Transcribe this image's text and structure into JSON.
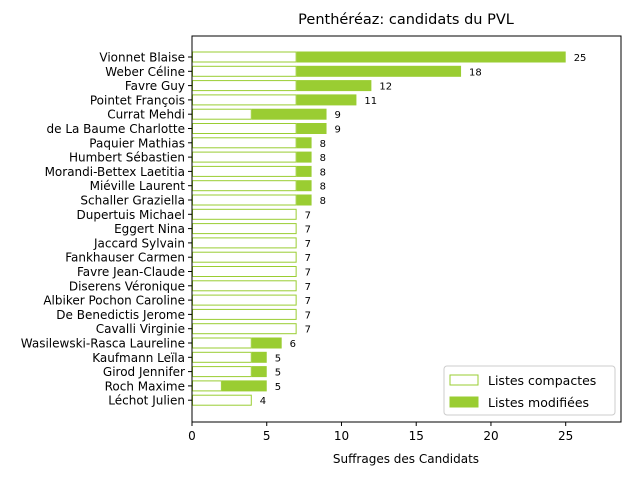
{
  "chart_data": {
    "type": "bar",
    "orientation": "horizontal",
    "stacked": true,
    "title": "Penthéréaz: candidats du PVL",
    "xlabel": "Suffrages des Candidats",
    "ylabel": "",
    "xlim": [
      0,
      28.7
    ],
    "xticks": [
      "0",
      "5",
      "10",
      "15",
      "20",
      "25"
    ],
    "grid": false,
    "legend_position": "lower-right",
    "colors": {
      "accent": "#9ACD32",
      "edge": "#9ACD32",
      "compact_fill": "#FFFFFF"
    },
    "categories": [
      "Vionnet Blaise",
      "Weber Céline",
      "Favre Guy",
      "Pointet François",
      "Currat Mehdi",
      "de La Baume Charlotte",
      "Paquier Mathias",
      "Humbert Sébastien",
      "Morandi-Bettex Laetitia",
      "Miéville Laurent",
      "Schaller Graziella",
      "Dupertuis Michael",
      "Eggert Nina",
      "Jaccard Sylvain",
      "Fankhauser Carmen",
      "Favre Jean-Claude",
      "Diserens Véronique",
      "Albiker Pochon Caroline",
      "De Benedictis Jerome",
      "Cavalli Virginie",
      "Wasilewski-Rasca Laureline",
      "Kaufmann Leïla",
      "Girod Jennifer",
      "Roch Maxime",
      "Léchot Julien"
    ],
    "series": [
      {
        "name": "Listes compactes",
        "values": [
          7,
          7,
          7,
          7,
          4,
          7,
          7,
          7,
          7,
          7,
          7,
          7,
          7,
          7,
          7,
          7,
          7,
          7,
          7,
          7,
          4,
          4,
          4,
          2,
          4
        ]
      },
      {
        "name": "Listes modifiées",
        "values": [
          18,
          11,
          5,
          4,
          5,
          2,
          1,
          1,
          1,
          1,
          1,
          0,
          0,
          0,
          0,
          0,
          0,
          0,
          0,
          0,
          2,
          1,
          1,
          3,
          0
        ]
      }
    ],
    "totals": [
      "25",
      "18",
      "12",
      "11",
      "9",
      "9",
      "8",
      "8",
      "8",
      "8",
      "8",
      "7",
      "7",
      "7",
      "7",
      "7",
      "7",
      "7",
      "7",
      "7",
      "6",
      "5",
      "5",
      "5",
      "4"
    ]
  }
}
